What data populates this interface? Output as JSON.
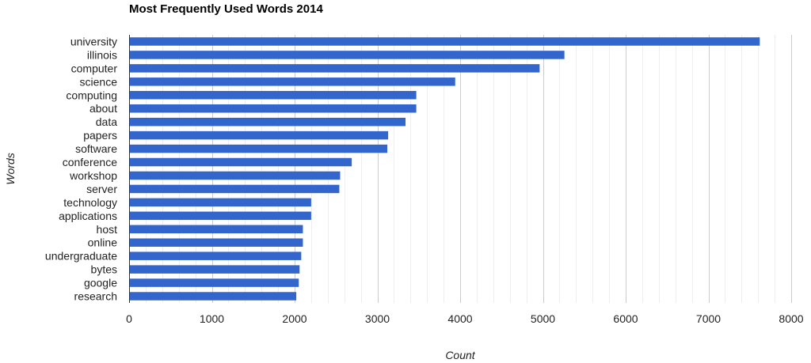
{
  "chart_data": {
    "type": "bar",
    "orientation": "horizontal",
    "title": "Most Frequently Used Words 2014",
    "xlabel": "Count",
    "ylabel": "Words",
    "xlim": [
      0,
      8000
    ],
    "x_ticks": [
      0,
      1000,
      2000,
      3000,
      4000,
      5000,
      6000,
      7000,
      8000
    ],
    "grid": true,
    "legend": "none",
    "bar_color": "#3366cc",
    "categories": [
      "university",
      "illinois",
      "computer",
      "science",
      "computing",
      "about",
      "data",
      "papers",
      "software",
      "conference",
      "workshop",
      "server",
      "technology",
      "applications",
      "host",
      "online",
      "undergraduate",
      "bytes",
      "google",
      "research"
    ],
    "values": [
      7620,
      5260,
      4960,
      3940,
      3470,
      3470,
      3340,
      3130,
      3120,
      2690,
      2550,
      2540,
      2200,
      2200,
      2100,
      2100,
      2080,
      2060,
      2050,
      2020
    ]
  }
}
